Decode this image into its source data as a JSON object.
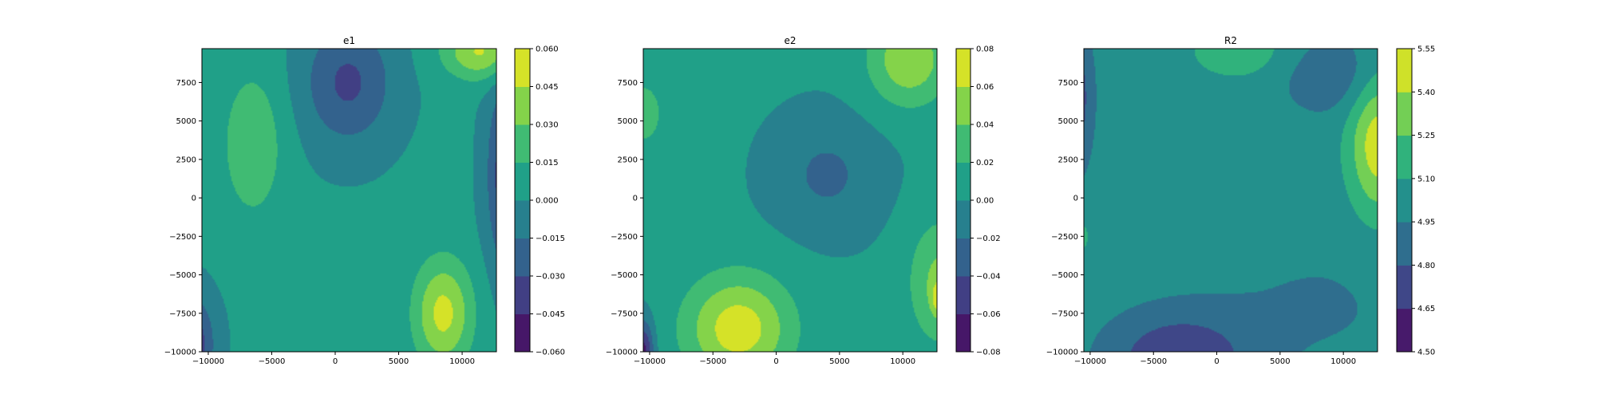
{
  "chart_data": [
    {
      "type": "heatmap",
      "subtype": "filled-contour",
      "title": "e1",
      "xlabel": "",
      "ylabel": "",
      "xlim": [
        -10500,
        12700
      ],
      "ylim": [
        -10000,
        9700
      ],
      "xticks": [
        -10000,
        -5000,
        0,
        5000,
        10000
      ],
      "xtick_labels": [
        "−10000",
        "−5000",
        "0",
        "5000",
        "10000"
      ],
      "yticks": [
        -10000,
        -7500,
        -5000,
        -2500,
        0,
        2500,
        5000,
        7500
      ],
      "ytick_labels": [
        "−10000",
        "−7500",
        "−5000",
        "−2500",
        "0",
        "2500",
        "5000",
        "7500"
      ],
      "colorbar_levels": [
        -0.06,
        -0.045,
        -0.03,
        -0.015,
        0.0,
        0.015,
        0.03,
        0.045,
        0.06
      ],
      "colorbar_labels": [
        "−0.060",
        "−0.045",
        "−0.030",
        "−0.015",
        "0.000",
        "0.015",
        "0.030",
        "0.045",
        "0.060"
      ],
      "field_features": [
        {
          "x": -6500,
          "y": 3500,
          "sx": 2500,
          "sy": 5000,
          "value": 0.025
        },
        {
          "x": 1000,
          "y": 7500,
          "sx": 3500,
          "sy": 4000,
          "value": -0.035
        },
        {
          "x": 8500,
          "y": -7500,
          "sx": 2300,
          "sy": 3500,
          "value": 0.048
        },
        {
          "x": 11500,
          "y": 9500,
          "sx": 3000,
          "sy": 1800,
          "value": 0.045
        },
        {
          "x": 13500,
          "y": 1500,
          "sx": 1500,
          "sy": 6000,
          "value": -0.045
        },
        {
          "x": -11500,
          "y": -9500,
          "sx": 1800,
          "sy": 3000,
          "value": -0.05
        }
      ],
      "field_base": 0.002
    },
    {
      "type": "heatmap",
      "subtype": "filled-contour",
      "title": "e2",
      "xlabel": "",
      "ylabel": "",
      "xlim": [
        -10500,
        12700
      ],
      "ylim": [
        -10000,
        9700
      ],
      "xticks": [
        -10000,
        -5000,
        0,
        5000,
        10000
      ],
      "xtick_labels": [
        "−10000",
        "−5000",
        "0",
        "5000",
        "10000"
      ],
      "yticks": [
        -10000,
        -7500,
        -5000,
        -2500,
        0,
        2500,
        5000,
        7500
      ],
      "ytick_labels": [
        "−10000",
        "−7500",
        "−5000",
        "−2500",
        "0",
        "2500",
        "5000",
        "7500"
      ],
      "colorbar_levels": [
        -0.08,
        -0.06,
        -0.04,
        -0.02,
        0.0,
        0.02,
        0.04,
        0.06,
        0.08
      ],
      "colorbar_labels": [
        "−0.08",
        "−0.06",
        "−0.04",
        "−0.02",
        "0.00",
        "0.02",
        "0.04",
        "0.06",
        "0.08"
      ],
      "field_features": [
        {
          "x": -3000,
          "y": -8500,
          "sx": 4200,
          "sy": 3500,
          "value": 0.07
        },
        {
          "x": 4000,
          "y": 1500,
          "sx": 4000,
          "sy": 3500,
          "value": -0.026
        },
        {
          "x": 10500,
          "y": 9000,
          "sx": 3200,
          "sy": 3000,
          "value": 0.055
        },
        {
          "x": -10500,
          "y": 5500,
          "sx": 1500,
          "sy": 2000,
          "value": 0.035
        },
        {
          "x": -10500,
          "y": -10000,
          "sx": 800,
          "sy": 2000,
          "value": -0.07
        },
        {
          "x": 13000,
          "y": -5500,
          "sx": 2500,
          "sy": 4000,
          "value": 0.045
        },
        {
          "x": 12800,
          "y": -6500,
          "sx": 500,
          "sy": 1000,
          "value": 0.04
        }
      ],
      "field_base": 0.002
    },
    {
      "type": "heatmap",
      "subtype": "filled-contour",
      "title": "R2",
      "xlabel": "",
      "ylabel": "",
      "xlim": [
        -10500,
        12700
      ],
      "ylim": [
        -10000,
        9700
      ],
      "xticks": [
        -10000,
        -5000,
        0,
        5000,
        10000
      ],
      "xtick_labels": [
        "−10000",
        "−5000",
        "0",
        "5000",
        "10000"
      ],
      "yticks": [
        -10000,
        -7500,
        -5000,
        -2500,
        0,
        2500,
        5000,
        7500
      ],
      "ytick_labels": [
        "−10000",
        "−7500",
        "−5000",
        "−2500",
        "0",
        "2500",
        "5000",
        "7500"
      ],
      "colorbar_levels": [
        4.5,
        4.65,
        4.8,
        4.95,
        5.1,
        5.25,
        5.4,
        5.55
      ],
      "colorbar_labels": [
        "4.50",
        "4.65",
        "4.80",
        "4.95",
        "5.10",
        "5.25",
        "5.40",
        "5.55"
      ],
      "field_features": [
        {
          "x": -3000,
          "y": -10500,
          "sx": 5500,
          "sy": 3000,
          "value": -0.36
        },
        {
          "x": -11500,
          "y": 6500,
          "sx": 1500,
          "sy": 4500,
          "value": -0.4
        },
        {
          "x": 12800,
          "y": 3500,
          "sx": 2300,
          "sy": 4500,
          "value": 0.48
        },
        {
          "x": 2000,
          "y": 9500,
          "sx": 4500,
          "sy": 2000,
          "value": 0.16
        },
        {
          "x": 9000,
          "y": 8000,
          "sx": 4000,
          "sy": 2500,
          "value": -0.2
        },
        {
          "x": -11000,
          "y": -2500,
          "sx": 1000,
          "sy": 1200,
          "value": 0.16
        },
        {
          "x": 8000,
          "y": -7000,
          "sx": 9000,
          "sy": 5000,
          "value": -0.08
        }
      ],
      "field_base": 5.02
    }
  ]
}
